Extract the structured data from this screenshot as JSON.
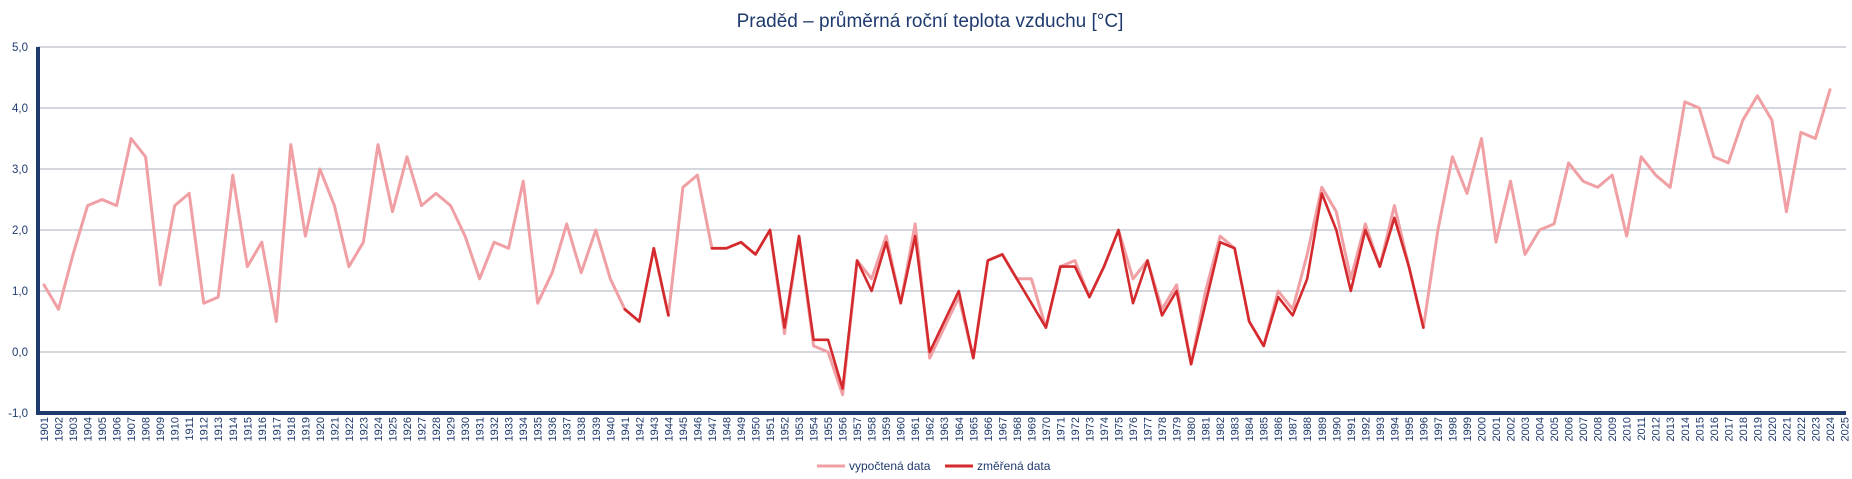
{
  "chart_data": {
    "type": "line",
    "title": "Praděd – průměrná roční teplota vzduchu [°C]",
    "xlabel": "",
    "ylabel": "",
    "ylim": [
      -1.0,
      5.0
    ],
    "yticks": [
      "5,0",
      "4,0",
      "3,0",
      "2,0",
      "1,0",
      "0,0",
      "-1,0"
    ],
    "grid": true,
    "legend_position": "bottom-center",
    "x": [
      1901,
      1902,
      1903,
      1904,
      1905,
      1906,
      1907,
      1908,
      1909,
      1910,
      1911,
      1912,
      1913,
      1914,
      1915,
      1916,
      1917,
      1918,
      1919,
      1920,
      1921,
      1922,
      1923,
      1924,
      1925,
      1926,
      1927,
      1928,
      1929,
      1930,
      1931,
      1932,
      1933,
      1934,
      1935,
      1936,
      1937,
      1938,
      1939,
      1940,
      1941,
      1942,
      1943,
      1944,
      1945,
      1946,
      1947,
      1948,
      1949,
      1950,
      1951,
      1952,
      1953,
      1954,
      1955,
      1956,
      1957,
      1958,
      1959,
      1960,
      1961,
      1962,
      1963,
      1964,
      1965,
      1966,
      1967,
      1968,
      1969,
      1970,
      1971,
      1972,
      1973,
      1974,
      1975,
      1976,
      1977,
      1978,
      1979,
      1980,
      1981,
      1982,
      1983,
      1984,
      1985,
      1986,
      1987,
      1988,
      1989,
      1990,
      1991,
      1992,
      1993,
      1994,
      1995,
      1996,
      1997,
      1998,
      1999,
      2000,
      2001,
      2002,
      2003,
      2004,
      2005,
      2006,
      2007,
      2008,
      2009,
      2010,
      2011,
      2012,
      2013,
      2014,
      2015,
      2016,
      2017,
      2018,
      2019,
      2020,
      2021,
      2022,
      2023,
      2024,
      2025
    ],
    "series": [
      {
        "name": "vypočtená data",
        "color": "#f0a0a4",
        "values": [
          1.1,
          0.7,
          1.6,
          2.4,
          2.5,
          2.4,
          3.5,
          3.2,
          1.1,
          2.4,
          2.6,
          0.8,
          0.9,
          2.9,
          1.4,
          1.8,
          0.5,
          3.4,
          1.9,
          3.0,
          2.4,
          1.4,
          1.8,
          3.4,
          2.3,
          3.2,
          2.4,
          2.6,
          2.4,
          1.9,
          1.2,
          1.8,
          1.7,
          2.8,
          0.8,
          1.3,
          2.1,
          1.3,
          2.0,
          1.2,
          0.7,
          0.5,
          1.7,
          0.6,
          2.7,
          2.9,
          1.7,
          1.7,
          1.8,
          1.6,
          2.0,
          0.3,
          1.9,
          0.1,
          0.0,
          -0.7,
          1.5,
          1.2,
          1.9,
          0.8,
          2.1,
          -0.1,
          0.4,
          0.9,
          -0.1,
          1.5,
          1.6,
          1.2,
          1.2,
          0.4,
          1.4,
          1.5,
          0.9,
          1.4,
          2.0,
          1.2,
          1.5,
          0.7,
          1.1,
          -0.2,
          1.0,
          1.9,
          1.7,
          0.5,
          0.1,
          1.0,
          0.7,
          1.6,
          2.7,
          2.3,
          1.2,
          2.1,
          1.4,
          2.4,
          1.4,
          0.4,
          2.0,
          3.2,
          2.6,
          3.5,
          1.8,
          2.8,
          1.6,
          2.0,
          2.1,
          3.1,
          2.8,
          2.7,
          2.9,
          1.9,
          3.2,
          2.9,
          2.7,
          4.1,
          4.0,
          3.2,
          3.1,
          3.8,
          4.2,
          3.8,
          2.3,
          3.6,
          3.5,
          4.3,
          null
        ]
      },
      {
        "name": "změřená data",
        "color": "#d42a2e",
        "values": [
          null,
          null,
          null,
          null,
          null,
          null,
          null,
          null,
          null,
          null,
          null,
          null,
          null,
          null,
          null,
          null,
          null,
          null,
          null,
          null,
          null,
          null,
          null,
          null,
          null,
          null,
          null,
          null,
          null,
          null,
          null,
          null,
          null,
          null,
          null,
          null,
          null,
          null,
          null,
          null,
          0.7,
          0.5,
          1.7,
          0.6,
          null,
          null,
          1.7,
          1.7,
          1.8,
          1.6,
          2.0,
          0.4,
          1.9,
          0.2,
          0.2,
          -0.6,
          1.5,
          1.0,
          1.8,
          0.8,
          1.9,
          0.0,
          0.5,
          1.0,
          -0.1,
          1.5,
          1.6,
          1.2,
          0.8,
          0.4,
          1.4,
          1.4,
          0.9,
          1.4,
          2.0,
          0.8,
          1.5,
          0.6,
          1.0,
          -0.2,
          0.8,
          1.8,
          1.7,
          0.5,
          0.1,
          0.9,
          0.6,
          1.2,
          2.6,
          2.0,
          1.0,
          2.0,
          1.4,
          2.2,
          1.4,
          0.4,
          null,
          null,
          null,
          null,
          null,
          null,
          null,
          null,
          null,
          null,
          null,
          null,
          null,
          null,
          null,
          null,
          null,
          null,
          null,
          null,
          null,
          null,
          null,
          null,
          null,
          null,
          null,
          null,
          null
        ]
      }
    ]
  },
  "colors": {
    "title": "#1f3a6e",
    "axis": "#1f3a6e",
    "grid": "#a8afbb",
    "tick_text": "#1f3a6e",
    "legend_text": "#1f3a6e"
  }
}
